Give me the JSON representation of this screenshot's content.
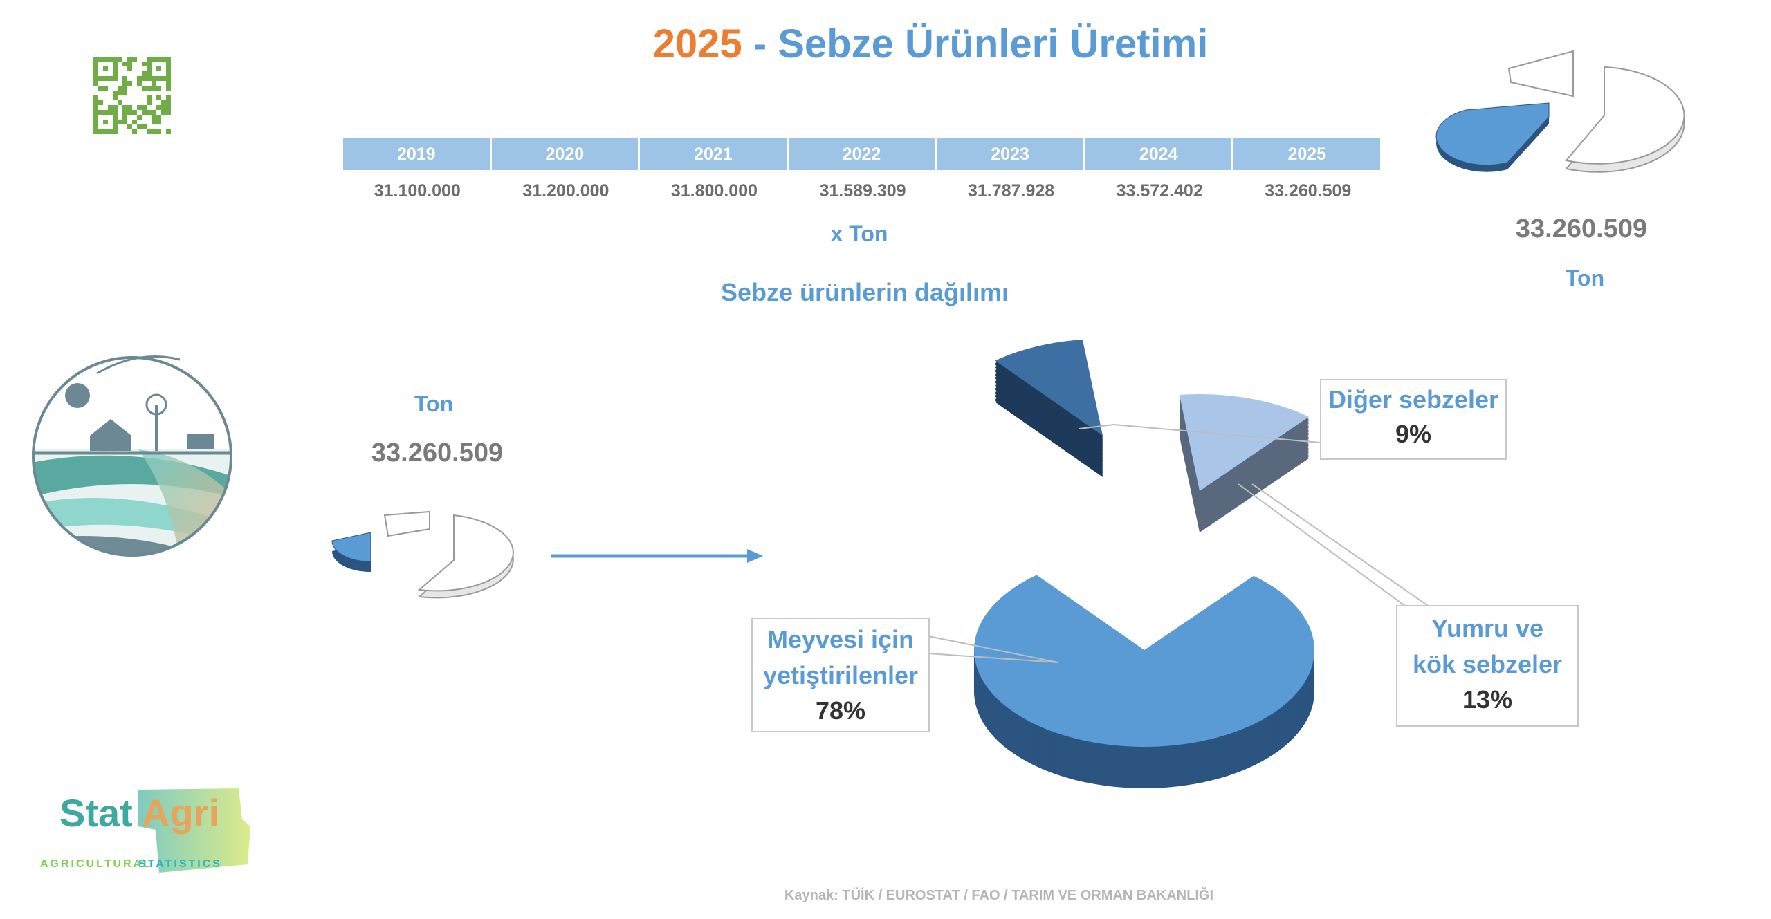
{
  "title": {
    "year": "2025",
    "text": " - Sebze Ürünleri Üretimi"
  },
  "table": {
    "years": [
      "2019",
      "2020",
      "2021",
      "2022",
      "2023",
      "2024",
      "2025"
    ],
    "values": [
      "31.100.000",
      "31.200.000",
      "31.800.000",
      "31.589.309",
      "31.787.928",
      "33.572.402",
      "33.260.509"
    ],
    "unit": "x  Ton"
  },
  "distribution_title": "Sebze ürünlerin dağılımı",
  "left_summary": {
    "unit": "Ton",
    "value": "33.260.509"
  },
  "right_summary": {
    "unit": "Ton",
    "value": "33.260.509"
  },
  "source": "Kaynak: TÜİK / EUROSTAT / FAO / TARIM VE ORMAN BAKANLIĞI",
  "logo": {
    "word1": "Stat",
    "word2": "Agri",
    "tag1": "AGRICULTURAL",
    "tag2": "STATISTICS"
  },
  "chart_data": {
    "type": "pie",
    "title": "Sebze ürünlerin dağılımı",
    "categories": [
      "Meyvesi için yetiştirilenler",
      "Diğer sebzeler",
      "Yumru ve kök sebzeler"
    ],
    "values": [
      78,
      9,
      13
    ],
    "labels": [
      "78%",
      "9%",
      "13%"
    ],
    "colors": [
      "#5b9bd5",
      "#3d6fa3",
      "#a9c6e8"
    ],
    "side_colors": [
      "#2b5580",
      "#1e3a5a",
      "#59687d"
    ]
  }
}
